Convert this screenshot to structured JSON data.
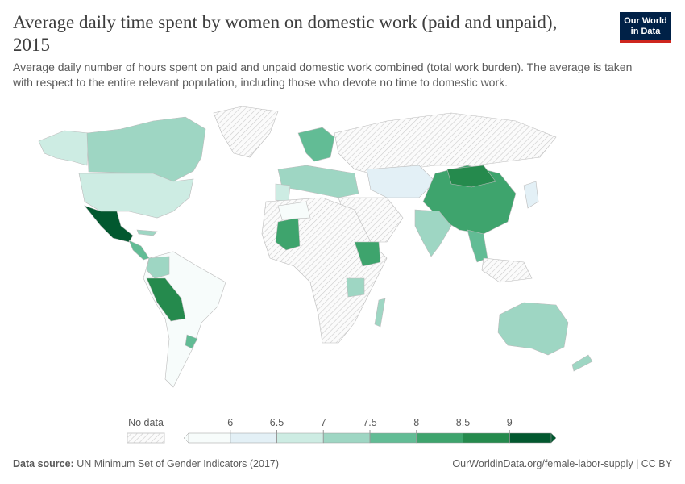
{
  "title": "Average daily time spent by women on domestic work (paid and unpaid), 2015",
  "subtitle": "Average daily number of hours spent on paid and unpaid domestic work combined (total work burden). The average is taken with respect to the entire relevant population, including those who devote no time to domestic work.",
  "logo": {
    "line1": "Our World",
    "line2": "in Data"
  },
  "legend": {
    "no_data_label": "No data",
    "ticks": [
      6,
      6.5,
      7,
      7.5,
      8,
      8.5,
      9
    ],
    "colors": [
      "#f7fcfb",
      "#e3f0f6",
      "#cdece3",
      "#9ed6c3",
      "#62bc95",
      "#3ea46d",
      "#258a4d",
      "#02582f"
    ]
  },
  "footer": {
    "source_label": "Data source:",
    "source": "UN Minimum Set of Gender Indicators (2017)",
    "credit": "OurWorldinData.org/female-labor-supply | CC BY"
  }
}
